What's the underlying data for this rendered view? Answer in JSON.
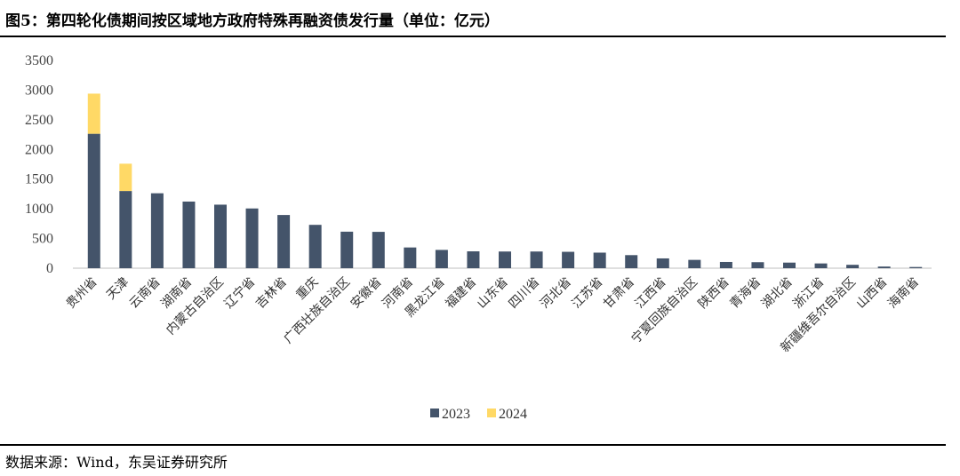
{
  "title": "图5：第四轮化债期间按区域地方政府特殊再融资债发行量（单位：亿元）",
  "source": "数据来源：Wind，东吴证券研究所",
  "chart_data": {
    "type": "bar",
    "stacked": true,
    "title": "图5：第四轮化债期间按区域地方政府特殊再融资债发行量（单位：亿元）",
    "xlabel": "",
    "ylabel": "",
    "ylim": [
      0,
      3500
    ],
    "yticks": [
      0,
      500,
      1000,
      1500,
      2000,
      2500,
      3000,
      3500
    ],
    "grid": false,
    "legend_position": "bottom",
    "categories": [
      "贵州省",
      "天津",
      "云南省",
      "湖南省",
      "内蒙古自治区",
      "辽宁省",
      "吉林省",
      "重庆",
      "广西壮族自治区",
      "安徽省",
      "河南省",
      "黑龙江省",
      "福建省",
      "山东省",
      "四川省",
      "河北省",
      "江苏省",
      "甘肃省",
      "江西省",
      "宁夏回族自治区",
      "陕西省",
      "青海省",
      "湖北省",
      "浙江省",
      "新疆维吾尔自治区",
      "山西省",
      "海南省"
    ],
    "series": [
      {
        "name": "2023",
        "color": "#44546A",
        "values": [
          2264,
          1300,
          1262,
          1122,
          1070,
          1006,
          896,
          730,
          615,
          612,
          349,
          308,
          284,
          281,
          281,
          276,
          262,
          220,
          165,
          140,
          105,
          101,
          94,
          80,
          57,
          28,
          20
        ]
      },
      {
        "name": "2024",
        "color": "#FFD966",
        "values": [
          676,
          460,
          0,
          0,
          0,
          0,
          0,
          0,
          0,
          0,
          0,
          0,
          0,
          0,
          0,
          0,
          0,
          0,
          0,
          0,
          0,
          0,
          0,
          0,
          0,
          0,
          0
        ]
      }
    ]
  }
}
